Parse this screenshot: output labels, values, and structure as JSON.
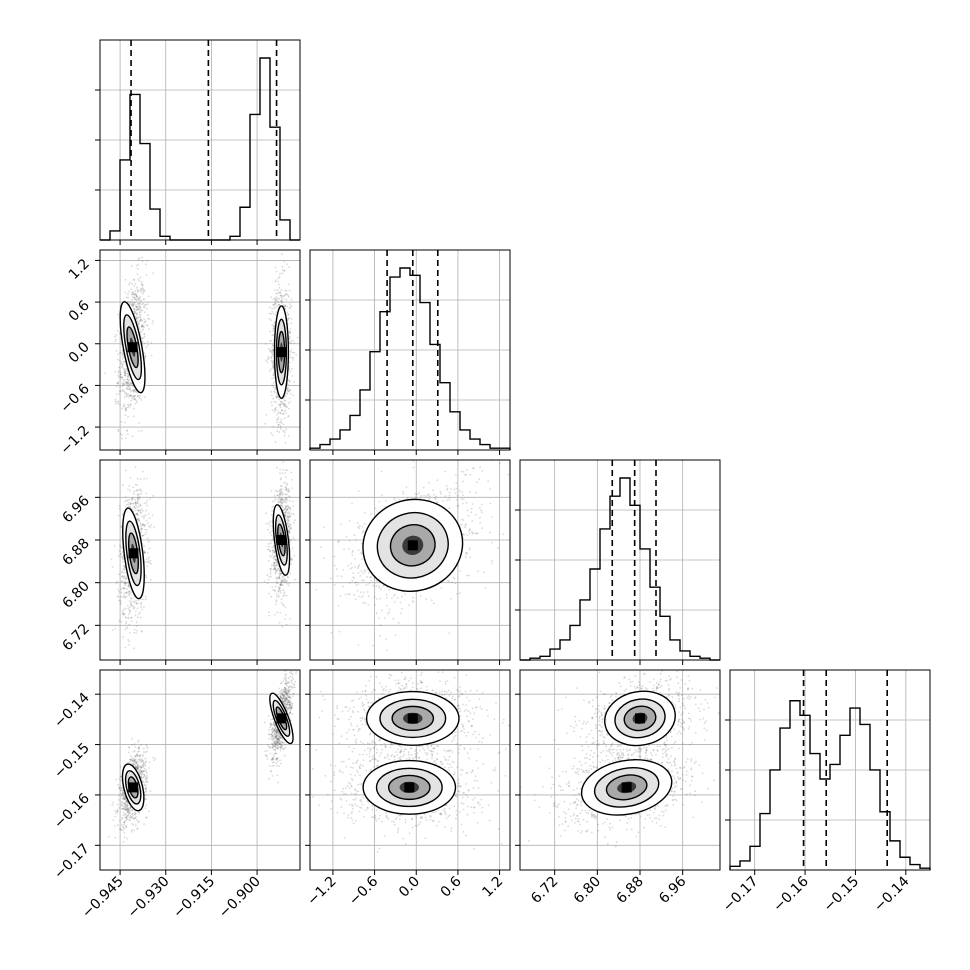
{
  "chart_data": {
    "type": "corner",
    "grid": true,
    "parameters": [
      {
        "index": 0,
        "range": [
          -0.9516,
          -0.8859
        ],
        "ticks": [
          -0.945,
          -0.93,
          -0.915,
          -0.9
        ],
        "tick_labels": [
          "−0.945",
          "−0.930",
          "−0.915",
          "−0.900"
        ],
        "quantiles": [
          -0.9414,
          -0.916,
          -0.8936
        ]
      },
      {
        "index": 1,
        "range": [
          -1.53,
          1.35
        ],
        "ticks": [
          -1.2,
          -0.6,
          0.0,
          0.6,
          1.2
        ],
        "tick_labels": [
          "−1.2",
          "−0.6",
          "0.0",
          "0.6",
          "1.2"
        ],
        "quantiles": [
          -0.42,
          -0.05,
          0.31
        ]
      },
      {
        "index": 2,
        "range": [
          6.655,
          7.03
        ],
        "ticks": [
          6.72,
          6.8,
          6.88,
          6.96
        ],
        "tick_labels": [
          "6.72",
          "6.80",
          "6.88",
          "6.96"
        ],
        "quantiles": [
          6.828,
          6.87,
          6.91
        ]
      },
      {
        "index": 3,
        "range": [
          -0.1749,
          -0.1352
        ],
        "ticks": [
          -0.17,
          -0.16,
          -0.15,
          -0.14
        ],
        "tick_labels": [
          "−0.17",
          "−0.16",
          "−0.15",
          "−0.14"
        ],
        "quantiles": [
          -0.1603,
          -0.1558,
          -0.1437
        ]
      }
    ],
    "histograms": [
      {
        "param": 0,
        "counts": [
          0,
          0.05,
          0.44,
          0.8,
          0.53,
          0.17,
          0.02,
          0,
          0,
          0,
          0,
          0,
          0,
          0.02,
          0.18,
          0.69,
          1.0,
          0.62,
          0.11,
          0
        ]
      },
      {
        "param": 1,
        "counts": [
          0.01,
          0.03,
          0.06,
          0.11,
          0.19,
          0.33,
          0.54,
          0.76,
          0.95,
          1.0,
          0.96,
          0.81,
          0.58,
          0.37,
          0.21,
          0.11,
          0.06,
          0.03,
          0.01,
          0.01
        ]
      },
      {
        "param": 2,
        "counts": [
          0,
          0.01,
          0.02,
          0.06,
          0.11,
          0.19,
          0.33,
          0.5,
          0.72,
          0.9,
          1.0,
          0.85,
          0.61,
          0.4,
          0.24,
          0.11,
          0.05,
          0.02,
          0.01,
          0
        ]
      },
      {
        "param": 3,
        "counts": [
          0.02,
          0.05,
          0.13,
          0.31,
          0.55,
          0.78,
          0.93,
          0.85,
          0.64,
          0.5,
          0.58,
          0.74,
          0.89,
          0.8,
          0.55,
          0.32,
          0.16,
          0.07,
          0.03,
          0.01
        ]
      }
    ],
    "pairs": [
      {
        "x": 0,
        "y": 1,
        "modes": [
          {
            "x": -0.9409,
            "y": -0.05,
            "sx": 0.0016,
            "sy": 0.35,
            "rho": 0.3,
            "w": 1
          },
          {
            "x": -0.892,
            "y": -0.12,
            "sx": 0.0012,
            "sy": 0.35,
            "rho": 0.0,
            "w": 1
          }
        ]
      },
      {
        "x": 0,
        "y": 2,
        "modes": [
          {
            "x": -0.9406,
            "y": 6.855,
            "sx": 0.0016,
            "sy": 0.045,
            "rho": 0.2,
            "w": 1
          },
          {
            "x": -0.892,
            "y": 6.88,
            "sx": 0.0012,
            "sy": 0.035,
            "rho": 0.2,
            "w": 1
          }
        ]
      },
      {
        "x": 0,
        "y": 3,
        "modes": [
          {
            "x": -0.9407,
            "y": -0.1585,
            "sx": 0.0016,
            "sy": 0.0025,
            "rho": 0.4,
            "w": 1
          },
          {
            "x": -0.892,
            "y": -0.1448,
            "sx": 0.0012,
            "sy": 0.0028,
            "rho": 0.6,
            "w": 1
          }
        ]
      },
      {
        "x": 1,
        "y": 2,
        "modes": [
          {
            "x": -0.05,
            "y": 6.87,
            "sx": 0.38,
            "sy": 0.045,
            "rho": 0.45,
            "w": 1
          }
        ]
      },
      {
        "x": 1,
        "y": 3,
        "modes": [
          {
            "x": -0.1,
            "y": -0.1585,
            "sx": 0.35,
            "sy": 0.0028,
            "rho": 0.0,
            "w": 1
          },
          {
            "x": -0.05,
            "y": -0.1448,
            "sx": 0.35,
            "sy": 0.0028,
            "rho": 0.0,
            "w": 1
          }
        ]
      },
      {
        "x": 2,
        "y": 3,
        "modes": [
          {
            "x": 6.855,
            "y": -0.1585,
            "sx": 0.045,
            "sy": 0.0028,
            "rho": 0.3,
            "w": 1
          },
          {
            "x": 6.88,
            "y": -0.1448,
            "sx": 0.035,
            "sy": 0.0028,
            "rho": 0.3,
            "w": 1
          }
        ]
      }
    ]
  }
}
